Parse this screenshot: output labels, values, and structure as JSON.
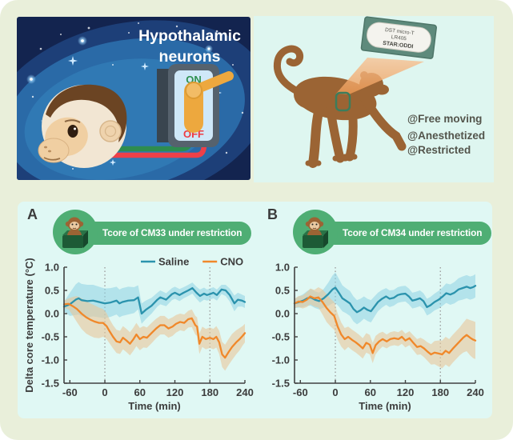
{
  "page": {
    "background": "#e9efda",
    "figure_panel_color": "#e0f8f4"
  },
  "illustration_left": {
    "title": "Hypothalamic neurons",
    "title_lines": [
      "Hypothalamic",
      "neurons"
    ],
    "switch": {
      "on": "ON",
      "off": "OFF",
      "on_color": "#2e9150",
      "off_color": "#ee3b43",
      "lever_color": "#eda83e"
    },
    "wire_colors": {
      "green": "#2e8c4f",
      "red": "#ee4048"
    },
    "background_colors": {
      "outer": "#13244f",
      "mid": "#1d3f78",
      "ellipse": "#2a6aa7",
      "inner": "#3079b4"
    }
  },
  "illustration_right": {
    "background": "#def6f0",
    "monkey_color": "#9b6434",
    "beam_color": "#f2a263",
    "implant_marker_color": "#3c7d5c",
    "device_label_lines": [
      "DST micro-T",
      "LR405",
      "STAR:ODDI"
    ],
    "conditions": [
      "@Free moving",
      "@Anesthetized",
      "@Restricted"
    ]
  },
  "figure": {
    "badge_color": "#4fae74",
    "panels": [
      {
        "letter": "A",
        "badge": "Tcore of CM33 under restriction"
      },
      {
        "letter": "B",
        "badge": "Tcore of CM34 under restriction"
      }
    ],
    "legend": [
      {
        "label": "Saline",
        "color": "#2b93ad"
      },
      {
        "label": "CNO",
        "color": "#f0882a"
      }
    ],
    "xlabel": "Time (min)",
    "ylabel": "Delta core temperature (°C)"
  },
  "chart_data": [
    {
      "type": "line",
      "panel": "A",
      "title": "Tcore of CM33 under restriction",
      "xlabel": "Time (min)",
      "ylabel": "Delta core temperature (°C)",
      "xlim": [
        -70,
        240
      ],
      "ylim": [
        -1.5,
        1.0
      ],
      "xticks": [
        -60,
        0,
        60,
        120,
        180,
        240
      ],
      "yticks": [
        "1.0",
        "0.5",
        "0.0",
        "-0.5",
        "-1.0",
        "-1.5"
      ],
      "vlines": [
        0,
        180
      ],
      "legend_position": "top-right",
      "series": [
        {
          "name": "Saline",
          "color": "#2b93ad",
          "band_color": "#8ed2e3",
          "band_opacity": 0.55,
          "x": [
            -70,
            -60,
            -50,
            -45,
            -40,
            -30,
            -20,
            -10,
            0,
            10,
            20,
            25,
            30,
            40,
            50,
            57,
            63,
            70,
            80,
            90,
            95,
            105,
            115,
            120,
            128,
            135,
            143,
            150,
            157,
            163,
            170,
            175,
            180,
            186,
            192,
            200,
            207,
            214,
            222,
            228,
            235,
            240
          ],
          "y": [
            0.15,
            0.2,
            0.3,
            0.33,
            0.29,
            0.27,
            0.28,
            0.25,
            0.22,
            0.24,
            0.28,
            0.22,
            0.25,
            0.28,
            0.29,
            0.35,
            0.0,
            0.08,
            0.17,
            0.3,
            0.35,
            0.3,
            0.42,
            0.45,
            0.4,
            0.45,
            0.5,
            0.55,
            0.45,
            0.38,
            0.43,
            0.4,
            0.42,
            0.45,
            0.4,
            0.52,
            0.5,
            0.4,
            0.22,
            0.3,
            0.28,
            0.25
          ],
          "band": [
            0.1,
            0.25,
            0.33,
            0.35,
            0.35,
            0.35,
            0.34,
            0.33,
            0.32,
            0.31,
            0.3,
            0.3,
            0.3,
            0.3,
            0.28,
            0.26,
            0.22,
            0.2,
            0.17,
            0.15,
            0.15,
            0.14,
            0.13,
            0.13,
            0.13,
            0.12,
            0.12,
            0.12,
            0.13,
            0.14,
            0.13,
            0.12,
            0.12,
            0.12,
            0.12,
            0.1,
            0.12,
            0.14,
            0.17,
            0.15,
            0.13,
            0.13
          ]
        },
        {
          "name": "CNO",
          "color": "#f0882a",
          "band_color": "#e8c79a",
          "band_opacity": 0.6,
          "x": [
            -70,
            -62,
            -55,
            -48,
            -40,
            -32,
            -25,
            -18,
            -10,
            -3,
            3,
            8,
            14,
            20,
            26,
            31,
            37,
            43,
            49,
            54,
            60,
            66,
            72,
            80,
            88,
            95,
            102,
            109,
            116,
            122,
            129,
            136,
            143,
            149,
            155,
            158,
            162,
            167,
            173,
            180,
            186,
            191,
            196,
            201,
            206,
            212,
            218,
            225,
            231,
            236,
            240
          ],
          "y": [
            0.2,
            0.21,
            0.16,
            0.1,
            0.0,
            -0.08,
            -0.13,
            -0.17,
            -0.2,
            -0.2,
            -0.27,
            -0.38,
            -0.5,
            -0.6,
            -0.62,
            -0.52,
            -0.58,
            -0.65,
            -0.55,
            -0.45,
            -0.55,
            -0.5,
            -0.52,
            -0.42,
            -0.32,
            -0.25,
            -0.25,
            -0.32,
            -0.28,
            -0.22,
            -0.18,
            -0.2,
            -0.12,
            -0.1,
            -0.25,
            -0.28,
            -0.65,
            -0.5,
            -0.55,
            -0.52,
            -0.55,
            -0.5,
            -0.62,
            -0.88,
            -0.95,
            -0.83,
            -0.72,
            -0.62,
            -0.55,
            -0.48,
            -0.42
          ],
          "band": [
            0.08,
            0.12,
            0.2,
            0.28,
            0.33,
            0.35,
            0.35,
            0.35,
            0.33,
            0.3,
            0.28,
            0.26,
            0.25,
            0.25,
            0.25,
            0.25,
            0.25,
            0.25,
            0.25,
            0.25,
            0.24,
            0.23,
            0.22,
            0.22,
            0.21,
            0.2,
            0.2,
            0.2,
            0.2,
            0.19,
            0.18,
            0.18,
            0.18,
            0.19,
            0.2,
            0.2,
            0.22,
            0.22,
            0.22,
            0.22,
            0.22,
            0.23,
            0.25,
            0.27,
            0.28,
            0.28,
            0.28,
            0.26,
            0.24,
            0.21,
            0.2
          ]
        }
      ]
    },
    {
      "type": "line",
      "panel": "B",
      "title": "Tcore of CM34 under restriction",
      "xlabel": "Time (min)",
      "ylabel": "Delta core temperature (°C)",
      "xlim": [
        -70,
        240
      ],
      "ylim": [
        -1.5,
        1.0
      ],
      "xticks": [
        -60,
        0,
        60,
        120,
        180,
        240
      ],
      "yticks": [
        "1.0",
        "0.5",
        "0.0",
        "-0.5",
        "-1.0",
        "-1.5"
      ],
      "vlines": [
        0,
        180
      ],
      "legend_position": "none",
      "series": [
        {
          "name": "Saline",
          "color": "#2b93ad",
          "band_color": "#8ed2e3",
          "band_opacity": 0.55,
          "x": [
            -70,
            -62,
            -55,
            -48,
            -42,
            -35,
            -28,
            -20,
            -12,
            -5,
            0,
            6,
            12,
            18,
            25,
            31,
            37,
            43,
            49,
            55,
            61,
            67,
            73,
            80,
            87,
            93,
            100,
            107,
            113,
            120,
            126,
            132,
            138,
            145,
            151,
            157,
            163,
            170,
            177,
            184,
            190,
            197,
            204,
            211,
            218,
            225,
            231,
            236,
            240
          ],
          "y": [
            0.22,
            0.25,
            0.28,
            0.33,
            0.35,
            0.3,
            0.27,
            0.33,
            0.42,
            0.52,
            0.56,
            0.45,
            0.33,
            0.28,
            0.22,
            0.1,
            0.03,
            0.07,
            0.13,
            0.08,
            0.05,
            0.15,
            0.25,
            0.32,
            0.37,
            0.32,
            0.34,
            0.4,
            0.42,
            0.43,
            0.37,
            0.28,
            0.3,
            0.33,
            0.27,
            0.14,
            0.18,
            0.25,
            0.3,
            0.37,
            0.44,
            0.41,
            0.45,
            0.52,
            0.55,
            0.58,
            0.55,
            0.57,
            0.6
          ],
          "band": [
            0.1,
            0.12,
            0.14,
            0.16,
            0.18,
            0.18,
            0.18,
            0.2,
            0.25,
            0.3,
            0.33,
            0.3,
            0.28,
            0.27,
            0.27,
            0.27,
            0.26,
            0.25,
            0.24,
            0.24,
            0.24,
            0.22,
            0.2,
            0.19,
            0.18,
            0.18,
            0.17,
            0.17,
            0.17,
            0.17,
            0.17,
            0.17,
            0.17,
            0.17,
            0.17,
            0.18,
            0.18,
            0.18,
            0.19,
            0.2,
            0.21,
            0.22,
            0.23,
            0.24,
            0.25,
            0.25,
            0.25,
            0.25,
            0.25
          ]
        },
        {
          "name": "CNO",
          "color": "#f0882a",
          "band_color": "#e8c79a",
          "band_opacity": 0.6,
          "x": [
            -70,
            -63,
            -56,
            -49,
            -43,
            -36,
            -29,
            -22,
            -15,
            -8,
            -2,
            4,
            10,
            16,
            22,
            29,
            35,
            41,
            47,
            53,
            59,
            64,
            69,
            75,
            81,
            88,
            94,
            101,
            108,
            114,
            120,
            127,
            133,
            140,
            146,
            152,
            158,
            164,
            170,
            177,
            183,
            189,
            195,
            201,
            207,
            213,
            219,
            225,
            231,
            236,
            240
          ],
          "y": [
            0.22,
            0.26,
            0.25,
            0.3,
            0.37,
            0.33,
            0.35,
            0.25,
            0.12,
            0.02,
            -0.05,
            -0.28,
            -0.45,
            -0.55,
            -0.5,
            -0.57,
            -0.62,
            -0.68,
            -0.75,
            -0.63,
            -0.67,
            -0.85,
            -0.68,
            -0.6,
            -0.55,
            -0.6,
            -0.55,
            -0.53,
            -0.55,
            -0.5,
            -0.58,
            -0.53,
            -0.62,
            -0.72,
            -0.7,
            -0.75,
            -0.82,
            -0.88,
            -0.84,
            -0.86,
            -0.88,
            -0.8,
            -0.85,
            -0.76,
            -0.68,
            -0.6,
            -0.52,
            -0.46,
            -0.52,
            -0.56,
            -0.58
          ],
          "band": [
            0.1,
            0.12,
            0.14,
            0.16,
            0.17,
            0.18,
            0.22,
            0.27,
            0.3,
            0.3,
            0.3,
            0.28,
            0.26,
            0.24,
            0.22,
            0.22,
            0.22,
            0.22,
            0.22,
            0.21,
            0.21,
            0.22,
            0.2,
            0.18,
            0.16,
            0.15,
            0.15,
            0.15,
            0.15,
            0.15,
            0.15,
            0.15,
            0.16,
            0.17,
            0.18,
            0.19,
            0.2,
            0.22,
            0.25,
            0.28,
            0.3,
            0.3,
            0.3,
            0.3,
            0.3,
            0.3,
            0.32,
            0.35,
            0.38,
            0.4,
            0.4
          ]
        }
      ]
    }
  ]
}
